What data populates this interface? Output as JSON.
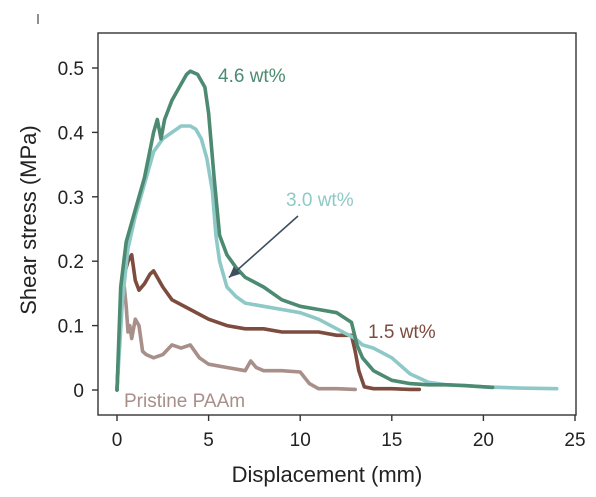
{
  "chart_data": {
    "type": "line",
    "title": "",
    "xlabel": "Displacement (mm)",
    "ylabel": "Shear stress (MPa)",
    "xlim": [
      0,
      25
    ],
    "ylim": [
      0,
      0.5
    ],
    "xticks": [
      0,
      5,
      10,
      15,
      20,
      25
    ],
    "xtick_labels": [
      "0",
      "5",
      "10",
      "15",
      "20",
      "25"
    ],
    "yticks": [
      0,
      0.1,
      0.2,
      0.3,
      0.4,
      0.5
    ],
    "ytick_labels": [
      "0",
      "0.1",
      "0.2",
      "0.3",
      "0.4",
      "0.5"
    ],
    "grid": false,
    "legend": "none",
    "series": [
      {
        "name": "4.6 wt%",
        "color": "#4c8a72",
        "x": [
          0,
          0.2,
          0.5,
          1.0,
          1.5,
          2.0,
          2.2,
          2.4,
          2.6,
          3.0,
          3.4,
          3.8,
          4.0,
          4.4,
          4.8,
          5.0,
          5.3,
          5.6,
          6.0,
          6.5,
          7.0,
          8.0,
          9.0,
          10.0,
          11.0,
          12.0,
          12.8,
          13.1,
          13.4,
          14.0,
          15.0,
          16.0,
          17.0,
          18.0,
          19.0,
          20.0,
          20.5
        ],
        "y": [
          0,
          0.16,
          0.23,
          0.28,
          0.33,
          0.4,
          0.42,
          0.39,
          0.42,
          0.45,
          0.47,
          0.49,
          0.495,
          0.49,
          0.47,
          0.43,
          0.33,
          0.24,
          0.21,
          0.19,
          0.175,
          0.16,
          0.14,
          0.13,
          0.125,
          0.12,
          0.105,
          0.07,
          0.05,
          0.03,
          0.015,
          0.01,
          0.008,
          0.008,
          0.007,
          0.005,
          0.004
        ]
      },
      {
        "name": "3.0 wt%",
        "color": "#8fc9c7",
        "x": [
          0,
          0.3,
          0.6,
          1.0,
          1.5,
          2.0,
          2.5,
          3.0,
          3.5,
          4.0,
          4.3,
          4.6,
          4.9,
          5.2,
          5.4,
          5.6,
          6.0,
          6.5,
          7.0,
          8.0,
          9.0,
          10.0,
          11.0,
          12.0,
          13.0,
          13.4,
          14.0,
          15.0,
          16.0,
          17.0,
          18.0,
          20.0,
          22.0,
          24.0
        ],
        "y": [
          0,
          0.14,
          0.22,
          0.27,
          0.32,
          0.37,
          0.39,
          0.4,
          0.41,
          0.41,
          0.405,
          0.39,
          0.36,
          0.31,
          0.24,
          0.2,
          0.16,
          0.145,
          0.135,
          0.13,
          0.125,
          0.12,
          0.11,
          0.095,
          0.08,
          0.07,
          0.065,
          0.05,
          0.025,
          0.012,
          0.008,
          0.005,
          0.003,
          0.002
        ]
      },
      {
        "name": "1.5 wt%",
        "color": "#7d4c3f",
        "x": [
          0,
          0.2,
          0.4,
          0.6,
          0.8,
          1.0,
          1.2,
          1.5,
          1.8,
          2.0,
          2.2,
          2.5,
          3.0,
          4.0,
          5.0,
          6.0,
          7.0,
          8.0,
          9.0,
          10.0,
          11.0,
          12.0,
          12.8,
          13.0,
          13.2,
          13.5,
          14.0,
          15.0,
          16.0,
          16.5
        ],
        "y": [
          0,
          0.12,
          0.18,
          0.2,
          0.21,
          0.17,
          0.155,
          0.165,
          0.18,
          0.185,
          0.175,
          0.16,
          0.14,
          0.125,
          0.11,
          0.1,
          0.095,
          0.095,
          0.09,
          0.09,
          0.09,
          0.085,
          0.085,
          0.06,
          0.03,
          0.005,
          0.002,
          0.002,
          0.001,
          0.001
        ]
      },
      {
        "name": "Pristine PAAm",
        "color": "#a88f89",
        "x": [
          0,
          0.2,
          0.3,
          0.4,
          0.5,
          0.6,
          0.7,
          0.8,
          1.0,
          1.2,
          1.4,
          1.6,
          2.0,
          2.5,
          3.0,
          3.5,
          4.0,
          4.5,
          5.0,
          6.0,
          7.0,
          7.3,
          7.6,
          8.0,
          9.0,
          10.0,
          10.5,
          11.0,
          12.0,
          13.0
        ],
        "y": [
          0,
          0.12,
          0.15,
          0.16,
          0.13,
          0.09,
          0.1,
          0.08,
          0.11,
          0.1,
          0.06,
          0.055,
          0.05,
          0.055,
          0.07,
          0.065,
          0.07,
          0.05,
          0.04,
          0.035,
          0.03,
          0.045,
          0.035,
          0.03,
          0.03,
          0.028,
          0.01,
          0.002,
          0.002,
          0.001
        ]
      }
    ],
    "annotations": [
      {
        "text": "4.6 wt%",
        "series": "4.6 wt%"
      },
      {
        "text": "3.0 wt%",
        "series": "3.0 wt%",
        "arrow_to": [
          6.0,
          0.17
        ]
      },
      {
        "text": "1.5 wt%",
        "series": "1.5 wt%"
      },
      {
        "text": "Pristine PAAm",
        "series": "Pristine PAAm"
      }
    ]
  }
}
